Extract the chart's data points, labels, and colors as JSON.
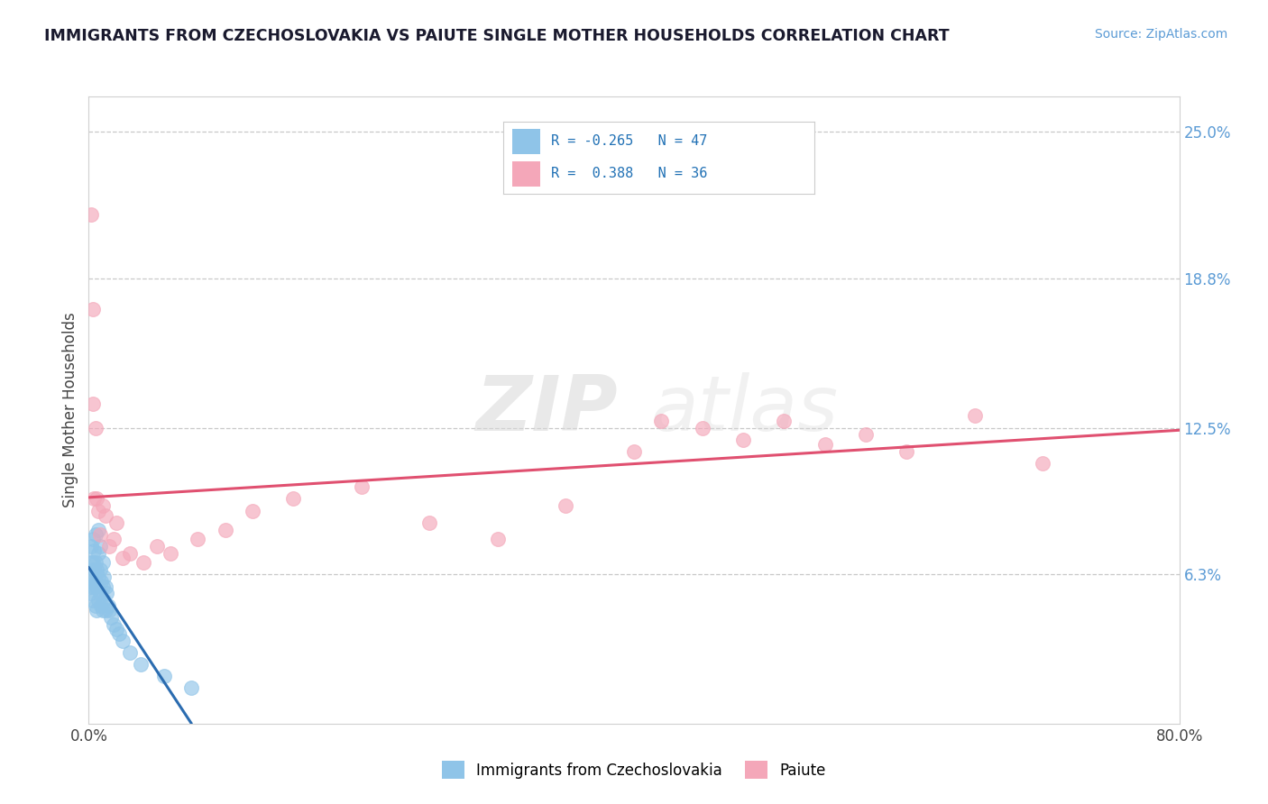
{
  "title": "IMMIGRANTS FROM CZECHOSLOVAKIA VS PAIUTE SINGLE MOTHER HOUSEHOLDS CORRELATION CHART",
  "source": "Source: ZipAtlas.com",
  "ylabel": "Single Mother Households",
  "xlim": [
    0.0,
    0.8
  ],
  "ylim": [
    0.0,
    0.265
  ],
  "ytick_positions": [
    0.0,
    0.063,
    0.125,
    0.188,
    0.25
  ],
  "ytick_labels": [
    "",
    "6.3%",
    "12.5%",
    "18.8%",
    "25.0%"
  ],
  "blue_R": -0.265,
  "blue_N": 47,
  "pink_R": 0.388,
  "pink_N": 36,
  "blue_color": "#8fc4e8",
  "pink_color": "#f4a7b9",
  "blue_line_color": "#2b6cb0",
  "pink_line_color": "#e05070",
  "legend_label_blue": "Immigrants from Czechoslovakia",
  "legend_label_pink": "Paiute",
  "watermark_zip": "ZIP",
  "watermark_atlas": "atlas",
  "background_color": "#ffffff",
  "grid_color": "#c8c8c8",
  "title_color": "#1a1a2e",
  "tick_label_color_right": "#5b9bd5",
  "blue_scatter_x": [
    0.001,
    0.001,
    0.002,
    0.002,
    0.002,
    0.003,
    0.003,
    0.003,
    0.003,
    0.004,
    0.004,
    0.004,
    0.005,
    0.005,
    0.005,
    0.005,
    0.006,
    0.006,
    0.006,
    0.007,
    0.007,
    0.007,
    0.007,
    0.008,
    0.008,
    0.008,
    0.009,
    0.009,
    0.01,
    0.01,
    0.01,
    0.011,
    0.011,
    0.012,
    0.012,
    0.013,
    0.014,
    0.015,
    0.016,
    0.018,
    0.02,
    0.022,
    0.025,
    0.03,
    0.038,
    0.055,
    0.075
  ],
  "blue_scatter_y": [
    0.055,
    0.062,
    0.058,
    0.068,
    0.075,
    0.052,
    0.06,
    0.068,
    0.078,
    0.058,
    0.065,
    0.073,
    0.05,
    0.06,
    0.068,
    0.08,
    0.048,
    0.058,
    0.065,
    0.052,
    0.062,
    0.072,
    0.082,
    0.055,
    0.065,
    0.075,
    0.05,
    0.06,
    0.048,
    0.058,
    0.068,
    0.052,
    0.062,
    0.048,
    0.058,
    0.055,
    0.05,
    0.048,
    0.045,
    0.042,
    0.04,
    0.038,
    0.035,
    0.03,
    0.025,
    0.02,
    0.015
  ],
  "pink_scatter_x": [
    0.002,
    0.003,
    0.003,
    0.004,
    0.005,
    0.006,
    0.007,
    0.008,
    0.01,
    0.012,
    0.015,
    0.018,
    0.02,
    0.025,
    0.03,
    0.04,
    0.05,
    0.06,
    0.08,
    0.1,
    0.12,
    0.15,
    0.2,
    0.25,
    0.3,
    0.35,
    0.4,
    0.42,
    0.45,
    0.48,
    0.51,
    0.54,
    0.57,
    0.6,
    0.65,
    0.7
  ],
  "pink_scatter_y": [
    0.215,
    0.175,
    0.135,
    0.095,
    0.125,
    0.095,
    0.09,
    0.08,
    0.092,
    0.088,
    0.075,
    0.078,
    0.085,
    0.07,
    0.072,
    0.068,
    0.075,
    0.072,
    0.078,
    0.082,
    0.09,
    0.095,
    0.1,
    0.085,
    0.078,
    0.092,
    0.115,
    0.128,
    0.125,
    0.12,
    0.128,
    0.118,
    0.122,
    0.115,
    0.13,
    0.11
  ]
}
